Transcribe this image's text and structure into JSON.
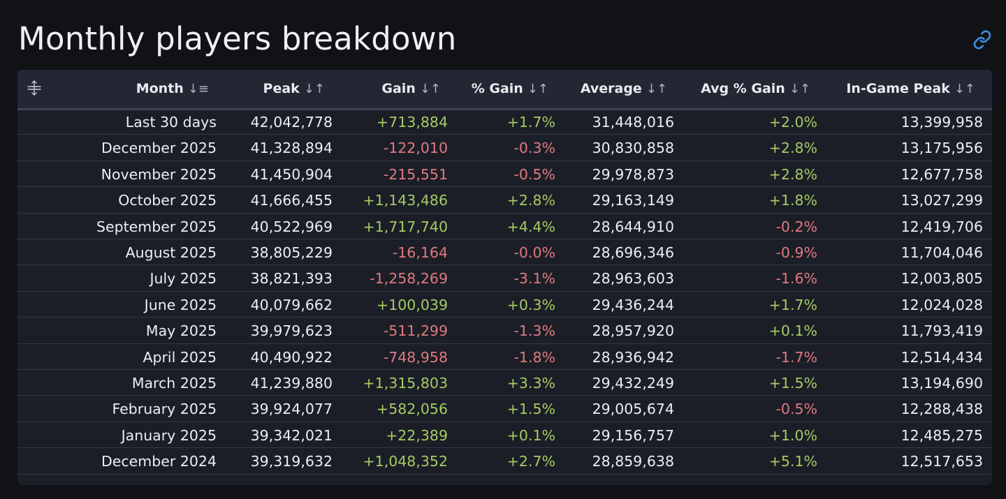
{
  "title": "Monthly players breakdown",
  "icons": {
    "link": "link-icon",
    "drag": "drag-handle-icon",
    "sort": "sort-icon"
  },
  "colors": {
    "positive": "#a5cc63",
    "negative": "#e07a80",
    "accent": "#3d8fe0"
  },
  "columns": [
    {
      "key": "month",
      "label": "Month",
      "sort_glyph": "↓≡"
    },
    {
      "key": "peak",
      "label": "Peak",
      "sort_glyph": "↓↑"
    },
    {
      "key": "gain",
      "label": "Gain",
      "sort_glyph": "↓↑"
    },
    {
      "key": "pct_gain",
      "label": "% Gain",
      "sort_glyph": "↓↑"
    },
    {
      "key": "average",
      "label": "Average",
      "sort_glyph": "↓↑"
    },
    {
      "key": "avg_pct_gain",
      "label": "Avg % Gain",
      "sort_glyph": "↓↑"
    },
    {
      "key": "ingame_peak",
      "label": "In-Game Peak",
      "sort_glyph": "↓↑"
    }
  ],
  "rows": [
    {
      "month": "Last 30 days",
      "peak": "42,042,778",
      "gain": "+713,884",
      "pct_gain": "+1.7%",
      "average": "31,448,016",
      "avg_pct_gain": "+2.0%",
      "ingame_peak": "13,399,958"
    },
    {
      "month": "December 2025",
      "peak": "41,328,894",
      "gain": "-122,010",
      "pct_gain": "-0.3%",
      "average": "30,830,858",
      "avg_pct_gain": "+2.8%",
      "ingame_peak": "13,175,956"
    },
    {
      "month": "November 2025",
      "peak": "41,450,904",
      "gain": "-215,551",
      "pct_gain": "-0.5%",
      "average": "29,978,873",
      "avg_pct_gain": "+2.8%",
      "ingame_peak": "12,677,758"
    },
    {
      "month": "October 2025",
      "peak": "41,666,455",
      "gain": "+1,143,486",
      "pct_gain": "+2.8%",
      "average": "29,163,149",
      "avg_pct_gain": "+1.8%",
      "ingame_peak": "13,027,299"
    },
    {
      "month": "September 2025",
      "peak": "40,522,969",
      "gain": "+1,717,740",
      "pct_gain": "+4.4%",
      "average": "28,644,910",
      "avg_pct_gain": "-0.2%",
      "ingame_peak": "12,419,706"
    },
    {
      "month": "August 2025",
      "peak": "38,805,229",
      "gain": "-16,164",
      "pct_gain": "-0.0%",
      "average": "28,696,346",
      "avg_pct_gain": "-0.9%",
      "ingame_peak": "11,704,046"
    },
    {
      "month": "July 2025",
      "peak": "38,821,393",
      "gain": "-1,258,269",
      "pct_gain": "-3.1%",
      "average": "28,963,603",
      "avg_pct_gain": "-1.6%",
      "ingame_peak": "12,003,805"
    },
    {
      "month": "June 2025",
      "peak": "40,079,662",
      "gain": "+100,039",
      "pct_gain": "+0.3%",
      "average": "29,436,244",
      "avg_pct_gain": "+1.7%",
      "ingame_peak": "12,024,028"
    },
    {
      "month": "May 2025",
      "peak": "39,979,623",
      "gain": "-511,299",
      "pct_gain": "-1.3%",
      "average": "28,957,920",
      "avg_pct_gain": "+0.1%",
      "ingame_peak": "11,793,419"
    },
    {
      "month": "April 2025",
      "peak": "40,490,922",
      "gain": "-748,958",
      "pct_gain": "-1.8%",
      "average": "28,936,942",
      "avg_pct_gain": "-1.7%",
      "ingame_peak": "12,514,434"
    },
    {
      "month": "March 2025",
      "peak": "41,239,880",
      "gain": "+1,315,803",
      "pct_gain": "+3.3%",
      "average": "29,432,249",
      "avg_pct_gain": "+1.5%",
      "ingame_peak": "13,194,690"
    },
    {
      "month": "February 2025",
      "peak": "39,924,077",
      "gain": "+582,056",
      "pct_gain": "+1.5%",
      "average": "29,005,674",
      "avg_pct_gain": "-0.5%",
      "ingame_peak": "12,288,438"
    },
    {
      "month": "January 2025",
      "peak": "39,342,021",
      "gain": "+22,389",
      "pct_gain": "+0.1%",
      "average": "29,156,757",
      "avg_pct_gain": "+1.0%",
      "ingame_peak": "12,485,275"
    },
    {
      "month": "December 2024",
      "peak": "39,319,632",
      "gain": "+1,048,352",
      "pct_gain": "+2.7%",
      "average": "28,859,638",
      "avg_pct_gain": "+5.1%",
      "ingame_peak": "12,517,653"
    }
  ]
}
